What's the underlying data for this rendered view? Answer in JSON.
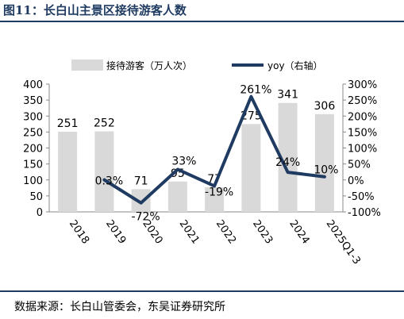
{
  "header": {
    "title": "图11：长白山主景区接待游客人数"
  },
  "footer": {
    "source": "数据来源：长白山管委会，东吴证券研究所"
  },
  "colors": {
    "bar": "#d9d9d9",
    "line": "#1f3b61",
    "text": "#000000"
  },
  "chart_data": {
    "type": "bar",
    "categories": [
      "2018",
      "2019",
      "2020",
      "2021",
      "2022",
      "2023",
      "2024",
      "2025Q1-3"
    ],
    "series": [
      {
        "name": "接待游客（万人次）",
        "type": "bar",
        "axis": "left",
        "values": [
          251,
          252,
          71,
          95,
          77,
          275,
          341,
          306
        ],
        "labels": [
          "251",
          "252",
          "71",
          "95",
          "77",
          "275",
          "341",
          "306"
        ]
      },
      {
        "name": "yoy（右轴）",
        "type": "line",
        "axis": "right",
        "values": [
          null,
          0.3,
          -72,
          33,
          -19,
          261,
          24,
          10
        ],
        "labels": [
          "",
          "0.3%",
          "-72%",
          "33%",
          "-19%",
          "261%",
          "24%",
          "10%"
        ]
      }
    ],
    "y_left": {
      "lim": [
        0,
        400
      ],
      "ticks": [
        "0",
        "50",
        "100",
        "150",
        "200",
        "250",
        "300",
        "350",
        "400"
      ]
    },
    "y_right": {
      "lim": [
        -100,
        300
      ],
      "ticks": [
        "-100%",
        "-50%",
        "0%",
        "50%",
        "100%",
        "150%",
        "200%",
        "250%",
        "300%"
      ]
    },
    "legend": {
      "position": "top"
    },
    "grid": false
  }
}
